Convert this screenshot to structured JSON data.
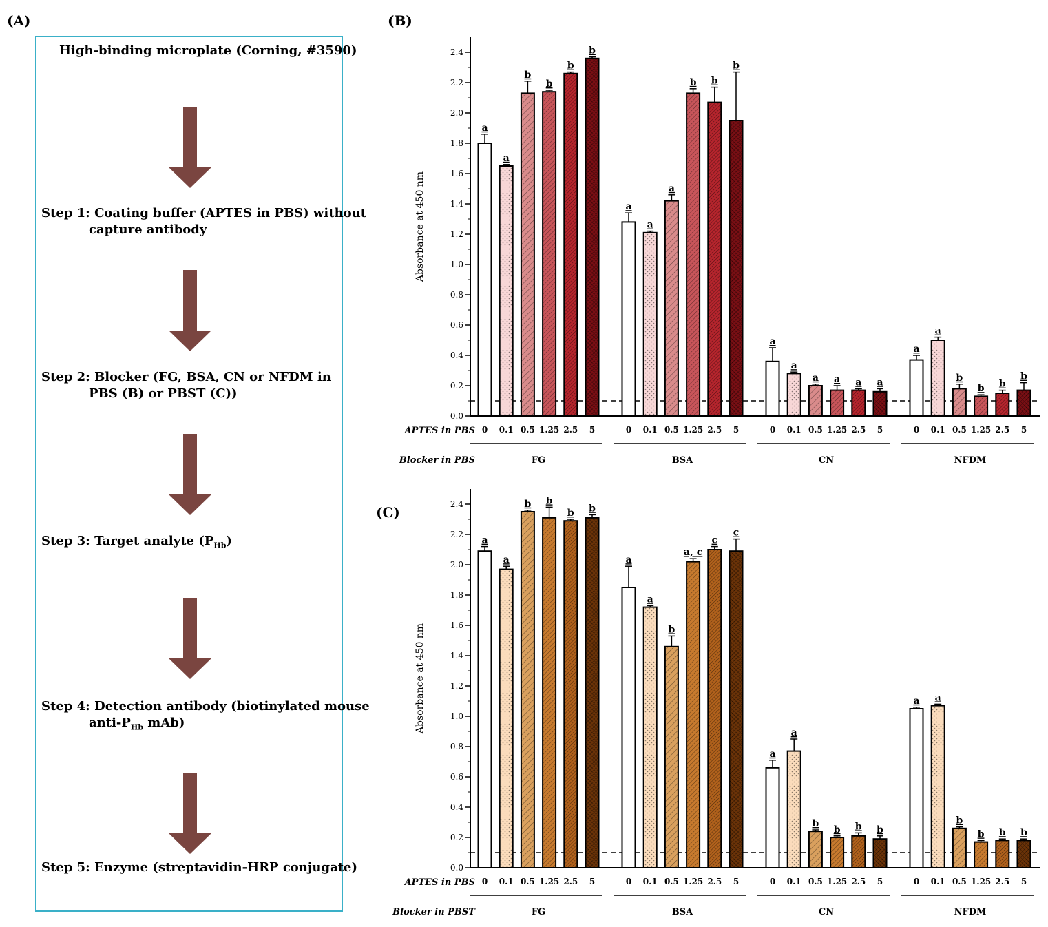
{
  "panels": {
    "a": "(A)",
    "b": "(B)",
    "c": "(C)"
  },
  "flow": {
    "title": "High-binding microplate (Corning, #3590)",
    "steps": [
      {
        "prefix": "Step 1:",
        "line1": "Coating buffer (APTES in PBS) without",
        "line2": "capture antibody"
      },
      {
        "prefix": "Step 2:",
        "line1": "Blocker (FG, BSA, CN or NFDM in",
        "line2": "PBS (B) or PBST (C))"
      },
      {
        "prefix": "Step 3:",
        "line1": "Target analyte (P",
        "sub": "Hb",
        "line1_end": ")"
      },
      {
        "prefix": "Step 4:",
        "line1": "Detection antibody (biotinylated mouse",
        "line2": "anti-P",
        "sub": "Hb",
        "line2_end": " mAb)"
      },
      {
        "prefix": "Step 5:",
        "line1": "Enzyme (streptavidin-HRP conjugate)"
      }
    ],
    "arrow_color": "#7a4540",
    "border_color": "#3ab0c8"
  },
  "chart_data": [
    {
      "type": "bar",
      "panel": "(B)",
      "ylabel": "Absorbance at 450 nm",
      "ylim": [
        0,
        2.5
      ],
      "yticks": [
        "0.0",
        "0.2",
        "0.4",
        "0.6",
        "0.8",
        "1.0",
        "1.2",
        "1.4",
        "1.6",
        "1.8",
        "2.0",
        "2.2",
        "2.4"
      ],
      "baseline": 0.1,
      "x_row_label": "APTES in PBS",
      "group_row_label": "Blocker in PBS",
      "categories": [
        "0",
        "0.1",
        "0.5",
        "1.25",
        "2.5",
        "5"
      ],
      "groups": [
        {
          "name": "FG",
          "values": [
            1.8,
            1.65,
            2.13,
            2.14,
            2.26,
            2.36
          ],
          "errors": [
            0.06,
            0.01,
            0.08,
            0.01,
            0.01,
            0.01
          ],
          "letters": [
            "a",
            "a",
            "b",
            "b",
            "b",
            "b"
          ]
        },
        {
          "name": "BSA",
          "values": [
            1.28,
            1.21,
            1.42,
            2.13,
            2.07,
            1.95
          ],
          "errors": [
            0.06,
            0.01,
            0.04,
            0.03,
            0.1,
            0.32
          ],
          "letters": [
            "a",
            "a",
            "a",
            "b",
            "b",
            "b"
          ]
        },
        {
          "name": "CN",
          "values": [
            0.36,
            0.28,
            0.2,
            0.17,
            0.17,
            0.16
          ],
          "errors": [
            0.09,
            0.01,
            0.01,
            0.03,
            0.01,
            0.02
          ],
          "letters": [
            "a",
            "a",
            "a",
            "a",
            "a",
            "a"
          ]
        },
        {
          "name": "NFDM",
          "values": [
            0.37,
            0.5,
            0.18,
            0.13,
            0.15,
            0.17
          ],
          "errors": [
            0.03,
            0.02,
            0.03,
            0.01,
            0.02,
            0.05
          ],
          "letters": [
            "a",
            "a",
            "b",
            "b",
            "b",
            "b"
          ]
        }
      ],
      "colors": [
        "#ffffff",
        "#f8d7d7",
        "#d98b8b",
        "#c8555a",
        "#b5252d",
        "#7a0f14"
      ]
    },
    {
      "type": "bar",
      "panel": "(C)",
      "ylabel": "Absorbance at 450 nm",
      "ylim": [
        0,
        2.5
      ],
      "yticks": [
        "0.0",
        "0.2",
        "0.4",
        "0.6",
        "0.8",
        "1.0",
        "1.2",
        "1.4",
        "1.6",
        "1.8",
        "2.0",
        "2.2",
        "2.4"
      ],
      "baseline": 0.1,
      "x_row_label": "APTES in PBS",
      "group_row_label": "Blocker in PBST",
      "categories": [
        "0",
        "0.1",
        "0.5",
        "1.25",
        "2.5",
        "5"
      ],
      "groups": [
        {
          "name": "FG",
          "values": [
            2.09,
            1.97,
            2.35,
            2.31,
            2.29,
            2.31
          ],
          "errors": [
            0.03,
            0.02,
            0.01,
            0.07,
            0.01,
            0.02
          ],
          "letters": [
            "a",
            "a",
            "b",
            "b",
            "b",
            "b"
          ]
        },
        {
          "name": "BSA",
          "values": [
            1.85,
            1.72,
            1.46,
            2.02,
            2.1,
            2.09
          ],
          "errors": [
            0.14,
            0.01,
            0.07,
            0.02,
            0.02,
            0.08
          ],
          "letters": [
            "a",
            "a",
            "b",
            "a, c",
            "c",
            "c"
          ]
        },
        {
          "name": "CN",
          "values": [
            0.66,
            0.77,
            0.24,
            0.2,
            0.21,
            0.19
          ],
          "errors": [
            0.05,
            0.08,
            0.01,
            0.01,
            0.02,
            0.02
          ],
          "letters": [
            "a",
            "a",
            "b",
            "b",
            "b",
            "b"
          ]
        },
        {
          "name": "NFDM",
          "values": [
            1.05,
            1.07,
            0.26,
            0.17,
            0.18,
            0.18
          ],
          "errors": [
            0.01,
            0.01,
            0.01,
            0.01,
            0.01,
            0.01
          ],
          "letters": [
            "a",
            "a",
            "b",
            "b",
            "b",
            "b"
          ]
        }
      ],
      "colors": [
        "#ffffff",
        "#fbdcbc",
        "#d9a05e",
        "#c77a2e",
        "#b0611c",
        "#6b3308"
      ]
    }
  ]
}
